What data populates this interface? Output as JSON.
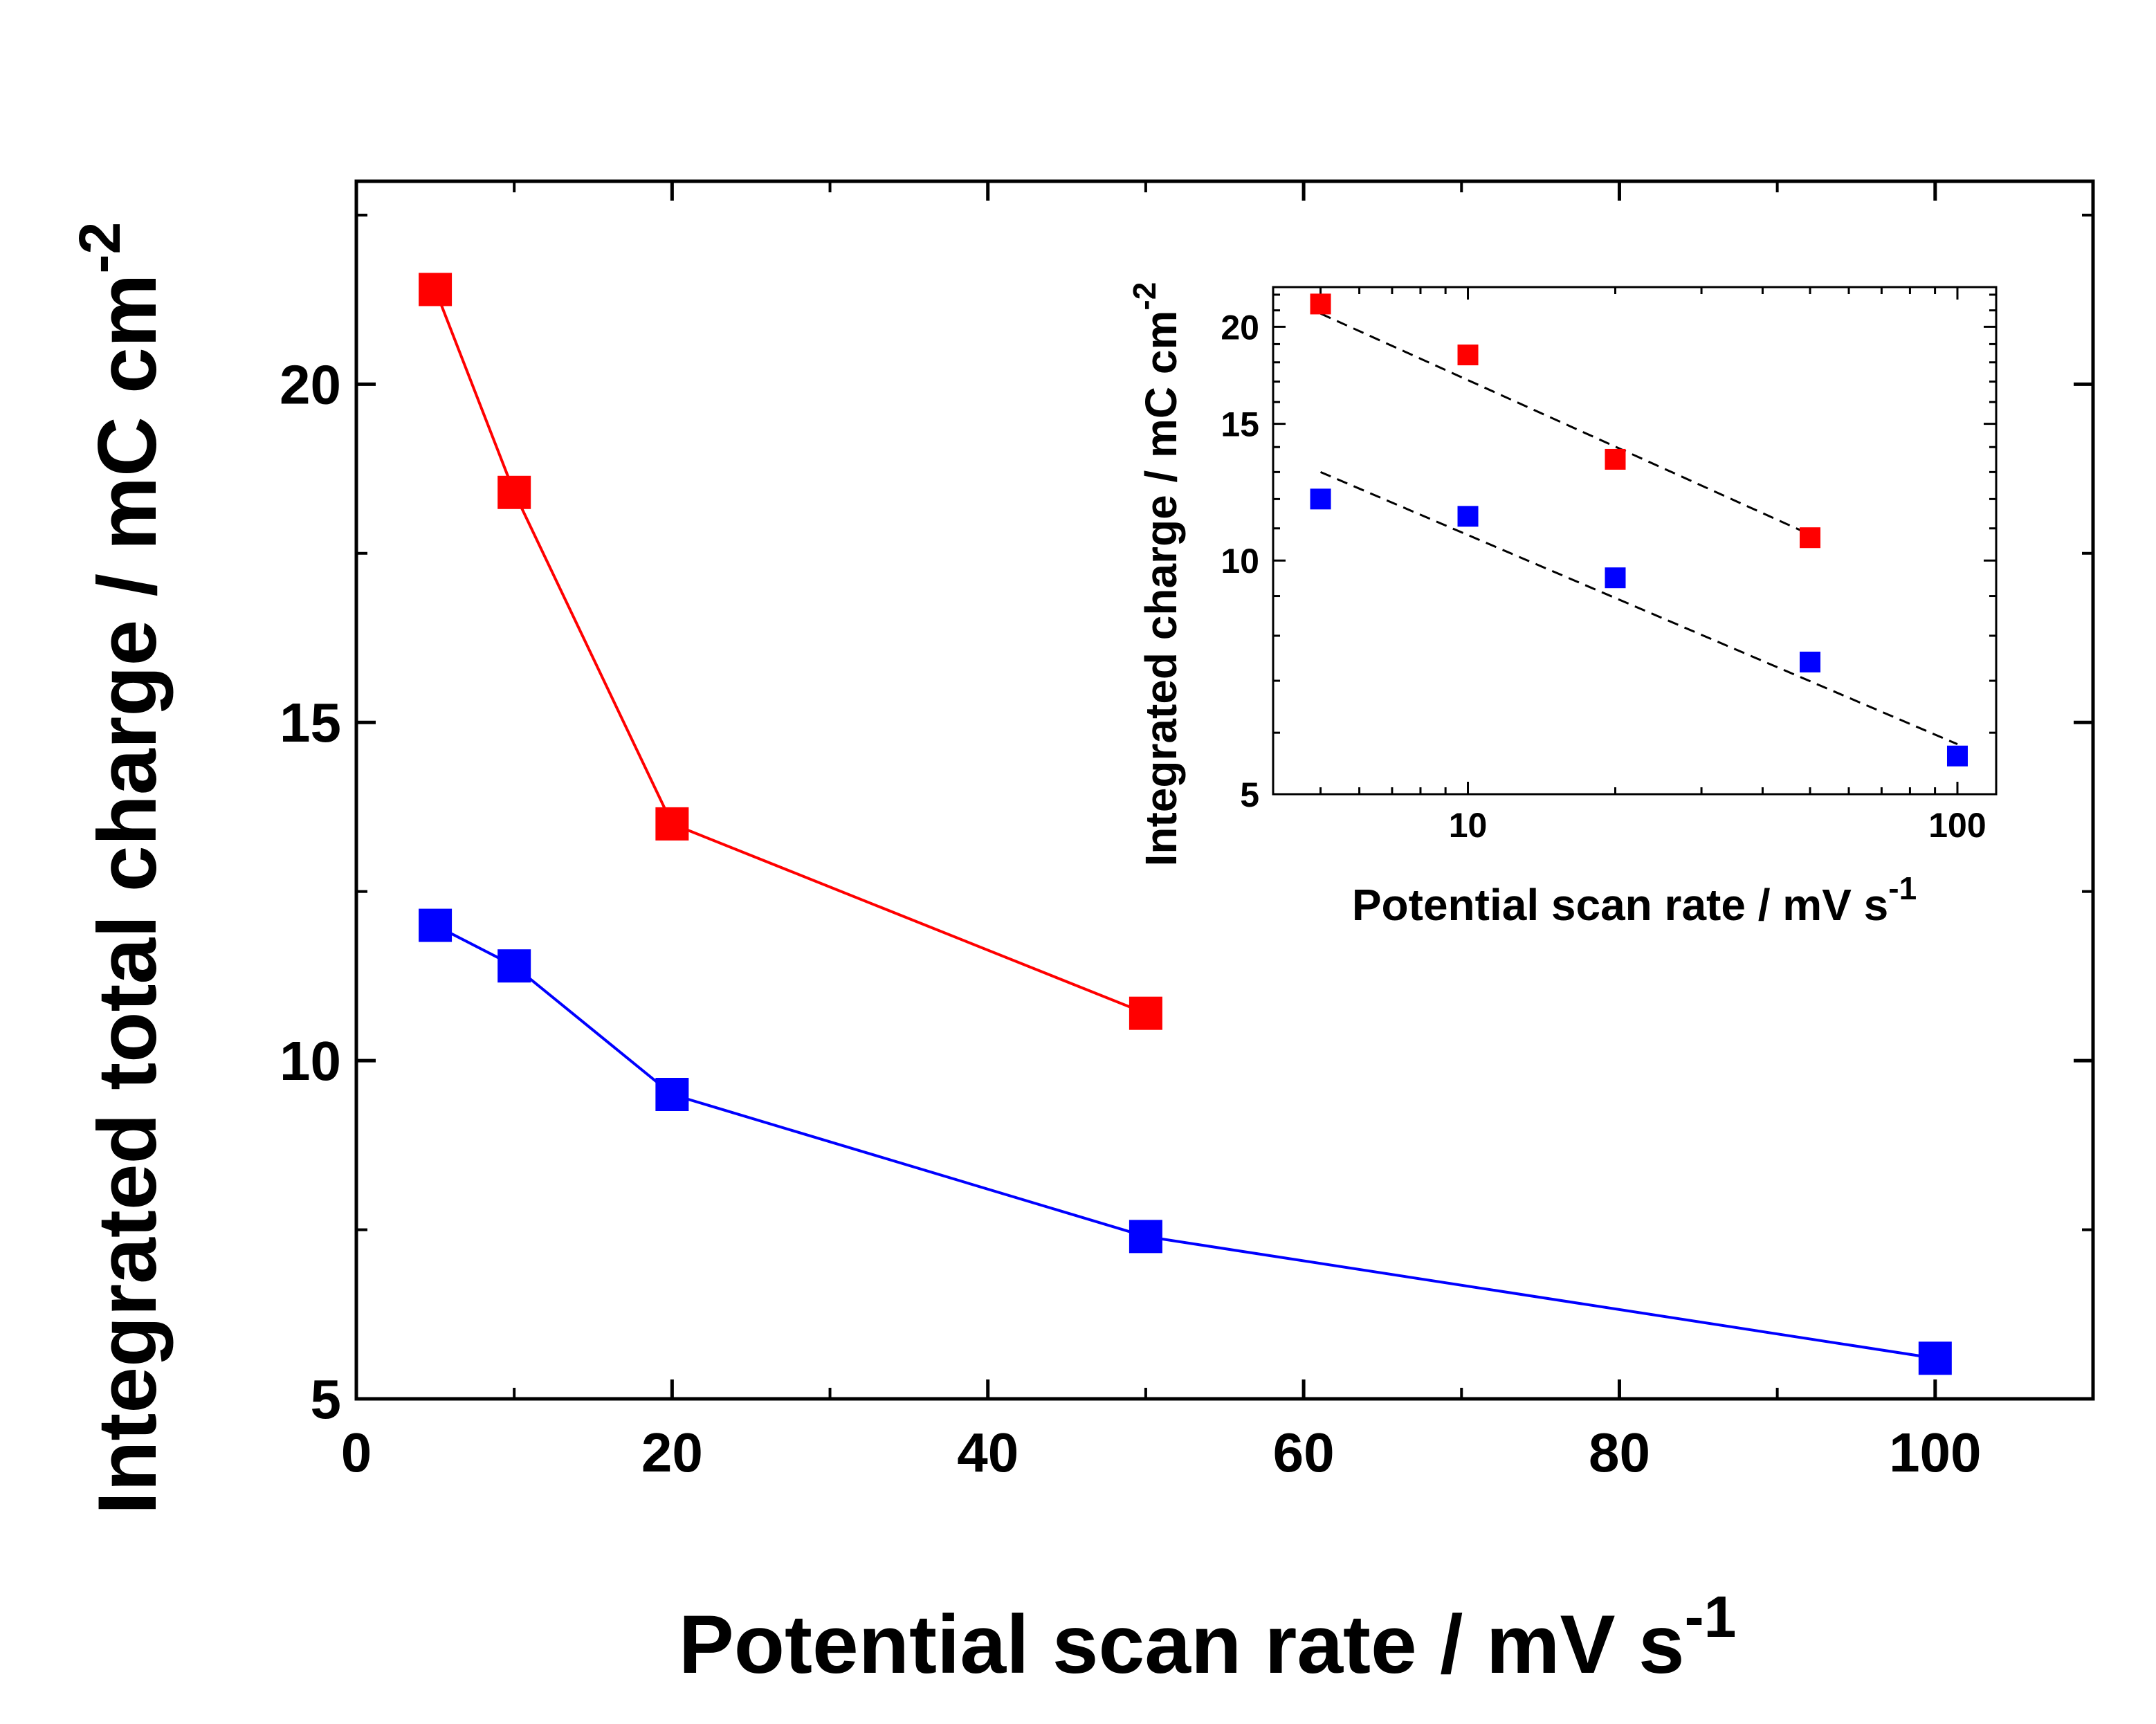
{
  "chart_data": [
    {
      "id": "main",
      "type": "line",
      "xlabel": "Potential scan rate / mV s",
      "xlabel_sup": "-1",
      "ylabel": "Integrated total charge / mC cm",
      "ylabel_sup": "-2",
      "xlim": [
        0,
        110
      ],
      "ylim": [
        5,
        23
      ],
      "xticks": [
        "0",
        "20",
        "40",
        "60",
        "80",
        "100"
      ],
      "xtick_values": [
        0,
        20,
        40,
        60,
        80,
        100
      ],
      "xminor": [
        10,
        30,
        50,
        70,
        90
      ],
      "yticks": [
        "5",
        "10",
        "15",
        "20"
      ],
      "ytick_values": [
        5,
        10,
        15,
        20
      ],
      "yminor": [
        7.5,
        12.5,
        17.5,
        22.5
      ],
      "grid": false,
      "series": [
        {
          "name": "red",
          "color": "#ff0000",
          "x": [
            5,
            10,
            20,
            50
          ],
          "values": [
            21.4,
            18.4,
            13.5,
            10.7
          ]
        },
        {
          "name": "blue",
          "color": "#0000ff",
          "x": [
            5,
            10,
            20,
            50,
            100
          ],
          "values": [
            12.0,
            11.4,
            9.5,
            7.4,
            5.6
          ]
        }
      ]
    },
    {
      "id": "inset",
      "type": "scatter",
      "scale": "log-log",
      "xlabel": "Potential scan rate / mV s",
      "xlabel_sup": "-1",
      "ylabel": "Integrated charge / mC cm",
      "ylabel_sup": "-2",
      "xlim": [
        4,
        120
      ],
      "ylim": [
        5,
        22.5
      ],
      "xticks": [
        "10",
        "100"
      ],
      "xtick_values": [
        10,
        100
      ],
      "yticks": [
        "5",
        "10",
        "15",
        "20"
      ],
      "ytick_values": [
        5,
        10,
        15,
        20
      ],
      "series": [
        {
          "name": "red",
          "color": "#ff0000",
          "x": [
            5,
            10,
            20,
            50
          ],
          "values": [
            21.4,
            18.4,
            13.5,
            10.7
          ]
        },
        {
          "name": "blue",
          "color": "#0000ff",
          "x": [
            5,
            10,
            20,
            50,
            100
          ],
          "values": [
            12.0,
            11.4,
            9.5,
            7.4,
            5.6
          ]
        }
      ],
      "fits": [
        {
          "name": "red-fit",
          "color": "#000000",
          "x": [
            5,
            50
          ],
          "values": [
            20.8,
            10.8
          ]
        },
        {
          "name": "blue-fit",
          "color": "#000000",
          "x": [
            5,
            100
          ],
          "values": [
            13.0,
            5.8
          ]
        }
      ]
    }
  ]
}
